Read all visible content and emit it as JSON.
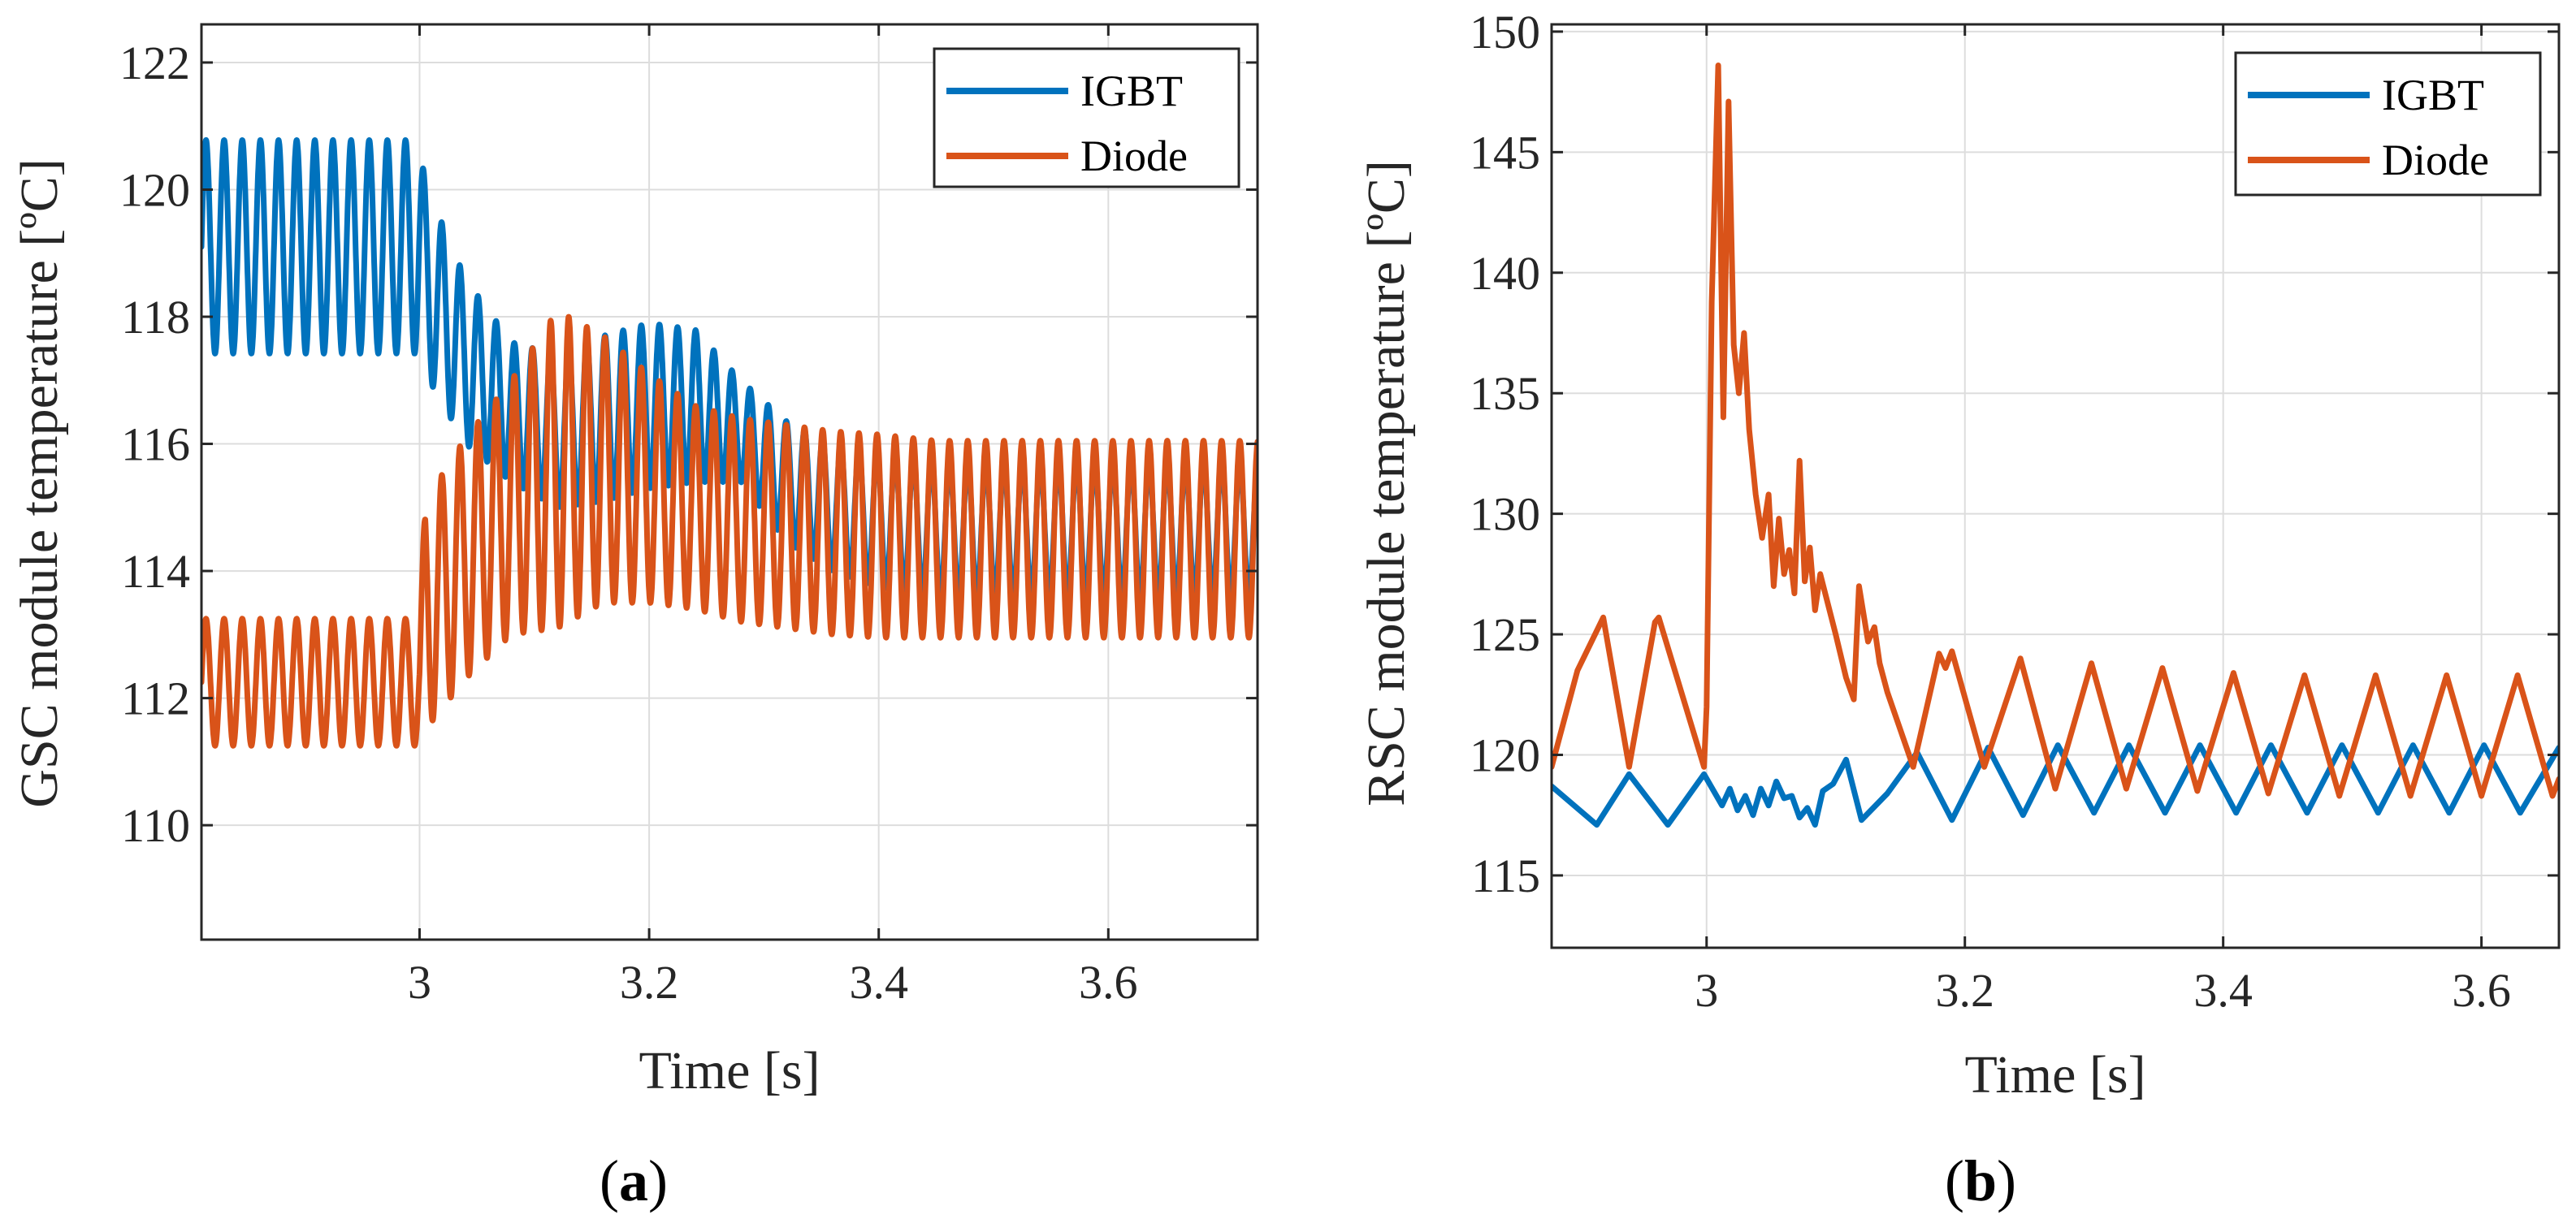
{
  "chart_data": [
    {
      "type": "line",
      "panel_label": "(a)",
      "panel_label_letter": "a",
      "xlabel": "Time [s]",
      "ylabel": "GSC module temperature [ºC]",
      "xlim": [
        2.81,
        3.73
      ],
      "ylim": [
        108.2,
        122.6
      ],
      "xticks": [
        3,
        3.2,
        3.4,
        3.6
      ],
      "xtick_labels": [
        "3",
        "3.2",
        "3.4",
        "3.6"
      ],
      "yticks": [
        110,
        112,
        114,
        116,
        118,
        120,
        122
      ],
      "ytick_labels": [
        "110",
        "112",
        "114",
        "116",
        "118",
        "120",
        "122"
      ],
      "grid": true,
      "legend_position": "top-right",
      "series": [
        {
          "name": "IGBT",
          "color": "#0072BD",
          "sampling": "sinusoidal oscillation (~0.0158 s period) around a mean with a given amplitude",
          "period": 0.0158,
          "x": [
            2.81,
            3.0,
            3.005,
            3.04,
            3.08,
            3.12,
            3.16,
            3.2,
            3.24,
            3.28,
            3.32,
            3.36,
            3.4,
            3.45,
            3.73
          ],
          "mean": [
            119.1,
            119.1,
            118.6,
            117.3,
            116.5,
            116.2,
            116.4,
            116.6,
            116.6,
            116.2,
            115.4,
            115.0,
            114.8,
            114.65,
            114.65
          ],
          "amplitude": [
            1.68,
            1.68,
            1.5,
            1.3,
            1.1,
            1.2,
            1.3,
            1.3,
            1.2,
            0.8,
            0.95,
            1.0,
            1.05,
            1.05,
            1.05
          ]
        },
        {
          "name": "Diode",
          "color": "#D95319",
          "sampling": "sinusoidal oscillation (~0.0158 s period) around a mean with a given amplitude",
          "period": 0.0158,
          "x": [
            2.81,
            3.0,
            3.005,
            3.04,
            3.08,
            3.12,
            3.16,
            3.2,
            3.24,
            3.28,
            3.32,
            3.36,
            3.4,
            3.45,
            3.73
          ],
          "mean": [
            112.25,
            112.25,
            113.3,
            114.2,
            115.0,
            115.6,
            115.6,
            115.3,
            115.0,
            114.8,
            114.7,
            114.6,
            114.55,
            114.5,
            114.5
          ],
          "amplitude": [
            1.0,
            1.0,
            1.8,
            1.9,
            2.0,
            2.5,
            2.1,
            1.8,
            1.6,
            1.6,
            1.6,
            1.6,
            1.6,
            1.55,
            1.55
          ]
        }
      ]
    },
    {
      "type": "line",
      "panel_label": "(b)",
      "panel_label_letter": "b",
      "xlabel": "Time [s]",
      "ylabel": "RSC module temperature [ºC]",
      "xlim": [
        2.88,
        3.66
      ],
      "ylim": [
        112,
        150.3
      ],
      "xticks": [
        3,
        3.2,
        3.4,
        3.6
      ],
      "xtick_labels": [
        "3",
        "3.2",
        "3.4",
        "3.6"
      ],
      "yticks": [
        115,
        120,
        125,
        130,
        135,
        140,
        145,
        150
      ],
      "ytick_labels": [
        "115",
        "120",
        "125",
        "130",
        "135",
        "140",
        "145",
        "150"
      ],
      "grid": true,
      "legend_position": "top-right",
      "series": [
        {
          "name": "IGBT",
          "color": "#0072BD",
          "sampling": "piecewise linear",
          "x": [
            2.88,
            2.915,
            2.94,
            2.97,
            2.998,
            3.012,
            3.018,
            3.024,
            3.03,
            3.036,
            3.042,
            3.048,
            3.054,
            3.06,
            3.066,
            3.072,
            3.078,
            3.084,
            3.09,
            3.098,
            3.108,
            3.12,
            3.14,
            3.163,
            3.19,
            3.218,
            3.245,
            3.272,
            3.3,
            3.327,
            3.355,
            3.382,
            3.41,
            3.437,
            3.465,
            3.492,
            3.52,
            3.547,
            3.575,
            3.602,
            3.63,
            3.66
          ],
          "y": [
            118.7,
            117.1,
            119.2,
            117.1,
            119.2,
            117.9,
            118.6,
            117.7,
            118.3,
            117.5,
            118.6,
            117.9,
            118.9,
            118.2,
            118.3,
            117.4,
            117.8,
            117.1,
            118.5,
            118.8,
            119.8,
            117.3,
            118.4,
            120.1,
            117.3,
            120.3,
            117.5,
            120.4,
            117.6,
            120.4,
            117.6,
            120.4,
            117.6,
            120.4,
            117.6,
            120.4,
            117.6,
            120.4,
            117.6,
            120.4,
            117.6,
            120.3
          ]
        },
        {
          "name": "Diode",
          "color": "#D95319",
          "sampling": "piecewise linear",
          "x": [
            2.88,
            2.9,
            2.92,
            2.94,
            2.96,
            2.963,
            2.998,
            3.0,
            3.004,
            3.009,
            3.013,
            3.017,
            3.021,
            3.025,
            3.029,
            3.033,
            3.038,
            3.043,
            3.048,
            3.052,
            3.056,
            3.06,
            3.064,
            3.068,
            3.072,
            3.076,
            3.08,
            3.084,
            3.088,
            3.1,
            3.108,
            3.114,
            3.118,
            3.125,
            3.13,
            3.134,
            3.14,
            3.16,
            3.18,
            3.185,
            3.19,
            3.215,
            3.243,
            3.27,
            3.298,
            3.325,
            3.353,
            3.38,
            3.408,
            3.435,
            3.463,
            3.49,
            3.518,
            3.545,
            3.573,
            3.6,
            3.628,
            3.655,
            3.66
          ],
          "y": [
            119.5,
            123.5,
            125.7,
            119.5,
            125.5,
            125.7,
            119.5,
            122.0,
            138.8,
            148.6,
            134.0,
            147.1,
            137.0,
            135.0,
            137.5,
            133.5,
            130.8,
            129.0,
            130.8,
            127.0,
            129.8,
            127.5,
            128.5,
            126.7,
            132.2,
            127.2,
            128.6,
            126.0,
            127.5,
            125.0,
            123.2,
            122.3,
            127.0,
            124.7,
            125.3,
            123.8,
            122.6,
            119.5,
            124.2,
            123.6,
            124.3,
            119.5,
            124.0,
            118.6,
            123.8,
            118.6,
            123.6,
            118.5,
            123.4,
            118.4,
            123.3,
            118.3,
            123.3,
            118.3,
            123.3,
            118.3,
            123.3,
            118.3,
            119.0
          ]
        }
      ]
    }
  ]
}
